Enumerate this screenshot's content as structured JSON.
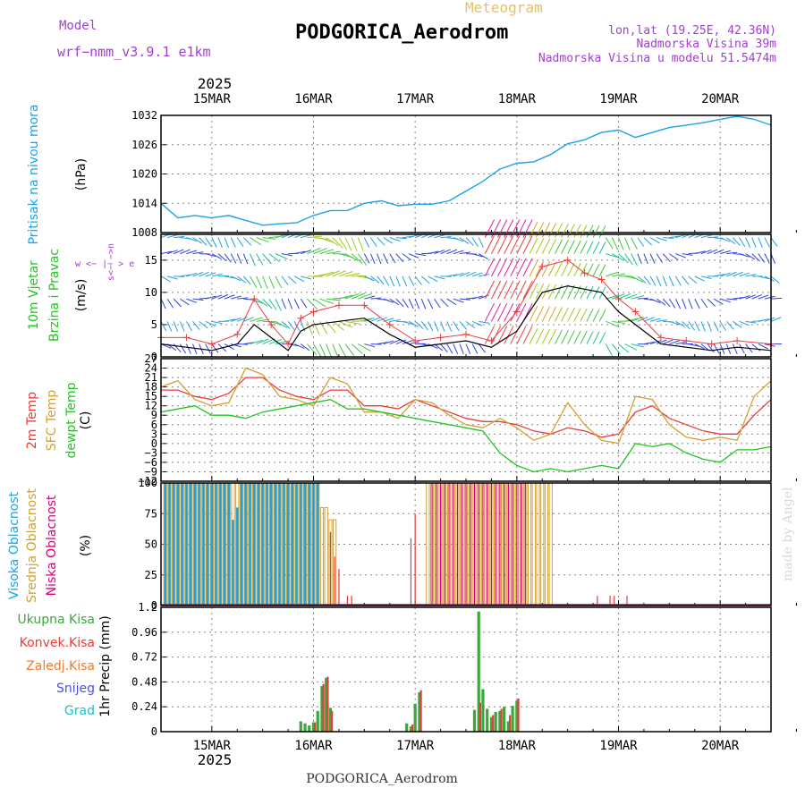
{
  "header": {
    "model_label": "Model",
    "model_name": "wrf−nmm_v3.9.1  e1km",
    "meteogram_label": "Meteogram",
    "station": "PODGORICA_Aerodrom",
    "lonlat": "lon,lat (19.25E, 42.36N)",
    "elevation": "Nadmorska Visina 39m",
    "model_elevation": "Nadmorska Visina u modelu 51.5474m",
    "footer_station": "PODGORICA_Aerodrom",
    "watermark": "made by Angel",
    "year": "2025"
  },
  "colors": {
    "pressure": "#1aa3e8",
    "t2m": "#e83c3c",
    "sfc": "#d4a030",
    "dewpt": "#22c422",
    "high_cloud": "#1aa3e8",
    "mid_cloud": "#d4a030",
    "low_cloud": "#d8007a",
    "total_precip": "#3aa83a",
    "conv_precip": "#e83c3c",
    "frozen_precip": "#f07a30",
    "snow": "#5050e0",
    "graupel": "#20c0c0",
    "header_purple": "#a040d0",
    "header_gold": "#e8c060"
  },
  "chart_data": {
    "date_axis": {
      "labels": [
        "15MAR",
        "16MAR",
        "17MAR",
        "18MAR",
        "19MAR",
        "20MAR"
      ],
      "start": "2025-03-14T12:00",
      "end": "2025-03-20T12:00"
    },
    "panels": [
      {
        "id": "pressure",
        "type": "line",
        "ylabel": [
          "Pritisak na nivou mora",
          "(hPa)"
        ],
        "ylim": [
          1008,
          1032
        ],
        "yticks": [
          1008,
          1014,
          1020,
          1026,
          1032
        ],
        "series": [
          {
            "x": [
              0,
              4,
              8,
              12,
              16,
              20,
              24,
              28,
              32,
              36,
              40,
              44,
              48,
              52,
              56,
              60,
              64,
              68,
              72,
              76,
              80,
              84,
              88,
              92,
              96,
              100,
              104,
              108,
              112,
              116,
              120,
              124,
              128,
              132,
              136,
              140,
              144
            ],
            "values": [
              1014,
              1011,
              1011.5,
              1011,
              1011.5,
              1010.5,
              1009.5,
              1009.8,
              1010,
              1011.5,
              1012.5,
              1012.5,
              1014,
              1014.5,
              1013.5,
              1013.8,
              1013.8,
              1014.5,
              1016.5,
              1018.5,
              1021,
              1022.2,
              1022.5,
              1024,
              1026.2,
              1027,
              1028.5,
              1029,
              1027.5,
              1028.5,
              1029.5,
              1030,
              1030.5,
              1031.2,
              1031.8,
              1031.2,
              1030
            ]
          }
        ]
      },
      {
        "id": "wind",
        "type": "line",
        "ylabel": [
          "10m Vjetar",
          "Brzina i Pravac",
          "(m/s)"
        ],
        "direction_key": "w  <− |− >  e",
        "direction_key_ns": "s<− −>n",
        "ylim": [
          0,
          19
        ],
        "yticks": [
          0,
          5,
          10,
          15
        ],
        "series": [
          {
            "name": "speed",
            "x": [
              0,
              6,
              12,
              18,
              22,
              26,
              30,
              33,
              36,
              42,
              48,
              54,
              60,
              66,
              72,
              78,
              84,
              90,
              96,
              100,
              104,
              108,
              112,
              118,
              124,
              130,
              136,
              144
            ],
            "values": [
              2,
              1.5,
              1,
              2,
              5,
              3,
              1,
              4,
              5,
              5.5,
              6,
              3.5,
              1.5,
              2,
              2.5,
              1.5,
              4,
              10,
              11,
              10.5,
              10,
              7,
              5,
              2,
              1.5,
              1,
              1.5,
              1
            ]
          },
          {
            "name": "gust",
            "x": [
              0,
              6,
              12,
              18,
              22,
              26,
              30,
              33,
              36,
              42,
              48,
              54,
              60,
              66,
              72,
              78,
              84,
              90,
              96,
              100,
              104,
              108,
              112,
              118,
              124,
              130,
              136,
              144
            ],
            "values": [
              3,
              3,
              2,
              3.5,
              9,
              5,
              2,
              6,
              7,
              8,
              8,
              5,
              2.5,
              3,
              3.5,
              2.5,
              7,
              14,
              15,
              13,
              12,
              9,
              7,
              3,
              2.5,
              2,
              2.5,
              2
            ]
          }
        ]
      },
      {
        "id": "temperature",
        "type": "line",
        "ylabel": [
          "2m Temp",
          "SFC Temp",
          "dewpt Temp",
          "(C)"
        ],
        "ylim": [
          -12,
          27
        ],
        "yticks": [
          -12,
          -9,
          -6,
          -3,
          0,
          3,
          6,
          9,
          12,
          15,
          18,
          21,
          24,
          27
        ],
        "series": [
          {
            "name": "2m Temp",
            "x": [
              0,
              4,
              8,
              12,
              16,
              20,
              24,
              28,
              32,
              36,
              40,
              44,
              48,
              52,
              56,
              60,
              64,
              68,
              72,
              76,
              80,
              84,
              88,
              92,
              96,
              100,
              104,
              108,
              112,
              116,
              120,
              124,
              128,
              132,
              136,
              140,
              144
            ],
            "values": [
              17,
              17,
              15,
              14,
              16,
              21,
              21,
              17,
              15,
              14,
              17,
              17,
              12,
              12,
              11,
              14,
              12,
              10,
              8,
              7,
              7,
              6,
              4,
              3,
              5,
              4,
              2,
              3,
              10,
              12,
              8,
              6,
              4,
              3,
              3,
              9,
              14
            ]
          },
          {
            "name": "SFC Temp",
            "x": [
              0,
              4,
              8,
              12,
              16,
              20,
              24,
              28,
              32,
              36,
              40,
              44,
              48,
              52,
              56,
              60,
              64,
              68,
              72,
              76,
              80,
              84,
              88,
              92,
              96,
              100,
              104,
              108,
              112,
              116,
              120,
              124,
              128,
              132,
              136,
              140,
              144
            ],
            "values": [
              18,
              20,
              14,
              12,
              13,
              24,
              22,
              15,
              14,
              12,
              21,
              19,
              10,
              10,
              8,
              14,
              13,
              9,
              6,
              5,
              8,
              5,
              1,
              3,
              13,
              6,
              1,
              0,
              15,
              14,
              6,
              2,
              1,
              2,
              1,
              15,
              20
            ]
          },
          {
            "name": "dewpt Temp",
            "x": [
              0,
              4,
              8,
              12,
              16,
              20,
              24,
              28,
              32,
              36,
              40,
              44,
              48,
              52,
              56,
              60,
              64,
              68,
              72,
              76,
              80,
              84,
              88,
              92,
              96,
              100,
              104,
              108,
              112,
              116,
              120,
              124,
              128,
              132,
              136,
              140,
              144
            ],
            "values": [
              10,
              11,
              12,
              9,
              9,
              8,
              10,
              11,
              12,
              13,
              14,
              11,
              11,
              10,
              9,
              8,
              7,
              6,
              5,
              4,
              -3,
              -7,
              -9,
              -8,
              -9,
              -8,
              -7,
              -8,
              0,
              -1,
              0,
              -3,
              -5,
              -6,
              -2,
              -2,
              -1
            ]
          }
        ]
      },
      {
        "id": "cloud",
        "type": "bar",
        "ylabel": [
          "Visoka Oblacnost",
          "Srednja Oblacnost",
          "Niska Oblacnost",
          "(%)"
        ],
        "ylim": [
          0,
          100
        ],
        "yticks": [
          0,
          25,
          50,
          75,
          100
        ],
        "high": {
          "x_start": 1,
          "x_end": 37,
          "step": 1,
          "value": 100,
          "dips": [
            [
              17,
              70
            ],
            [
              18,
              80
            ]
          ]
        },
        "mid": {
          "segments": [
            [
              1,
              37,
              100
            ],
            [
              38,
              39,
              80
            ],
            [
              40,
              41,
              70
            ],
            [
              63,
              92,
              100
            ]
          ]
        },
        "low": {
          "points": [
            [
              40,
              60
            ],
            [
              41,
              40
            ],
            [
              42,
              30
            ],
            [
              59,
              55
            ],
            [
              60,
              75
            ],
            [
              64,
              100
            ],
            [
              65,
              100
            ],
            [
              66,
              100
            ],
            [
              67,
              100
            ],
            [
              68,
              100
            ],
            [
              69,
              100
            ],
            [
              70,
              100
            ],
            [
              71,
              100
            ],
            [
              72,
              100
            ],
            [
              73,
              100
            ],
            [
              74,
              100
            ],
            [
              75,
              100
            ],
            [
              76,
              100
            ],
            [
              77,
              100
            ],
            [
              78,
              100
            ],
            [
              79,
              100
            ],
            [
              80,
              100
            ],
            [
              81,
              100
            ],
            [
              82,
              100
            ],
            [
              83,
              100
            ],
            [
              84,
              100
            ],
            [
              85,
              100
            ],
            [
              86,
              100
            ],
            [
              44,
              8
            ],
            [
              45,
              8
            ],
            [
              103,
              8
            ],
            [
              106,
              8
            ],
            [
              107,
              8
            ],
            [
              110,
              8
            ]
          ]
        }
      },
      {
        "id": "precip",
        "type": "bar",
        "ylabel": [
          "1hr Precip (mm)"
        ],
        "legend": [
          "Ukupna Kisa",
          "Konvek.Kisa",
          "Zaledj.Kisa",
          "Snijeg",
          "Grad"
        ],
        "ylim": [
          0,
          1.2
        ],
        "yticks": [
          0,
          0.24,
          0.48,
          0.72,
          0.96,
          1.2
        ],
        "total": [
          [
            33,
            0.1
          ],
          [
            34,
            0.08
          ],
          [
            35,
            0.06
          ],
          [
            36,
            0.09
          ],
          [
            37,
            0.2
          ],
          [
            38,
            0.44
          ],
          [
            39,
            0.52
          ],
          [
            40,
            0.23
          ],
          [
            58,
            0.08
          ],
          [
            59,
            0.05
          ],
          [
            60,
            0.27
          ],
          [
            61,
            0.38
          ],
          [
            74,
            0.21
          ],
          [
            75,
            1.16
          ],
          [
            76,
            0.41
          ],
          [
            77,
            0.22
          ],
          [
            78,
            0.14
          ],
          [
            79,
            0.19
          ],
          [
            80,
            0.2
          ],
          [
            81,
            0.24
          ],
          [
            82,
            0.1
          ],
          [
            83,
            0.25
          ],
          [
            84,
            0.3
          ]
        ],
        "convective": [
          [
            36,
            0.09
          ],
          [
            38,
            0.46
          ],
          [
            39,
            0.53
          ],
          [
            40,
            0.2
          ],
          [
            59,
            0.07
          ],
          [
            61,
            0.4
          ],
          [
            75,
            0.28
          ],
          [
            78,
            0.16
          ],
          [
            80,
            0.22
          ],
          [
            82,
            0.16
          ],
          [
            84,
            0.32
          ]
        ]
      }
    ]
  }
}
